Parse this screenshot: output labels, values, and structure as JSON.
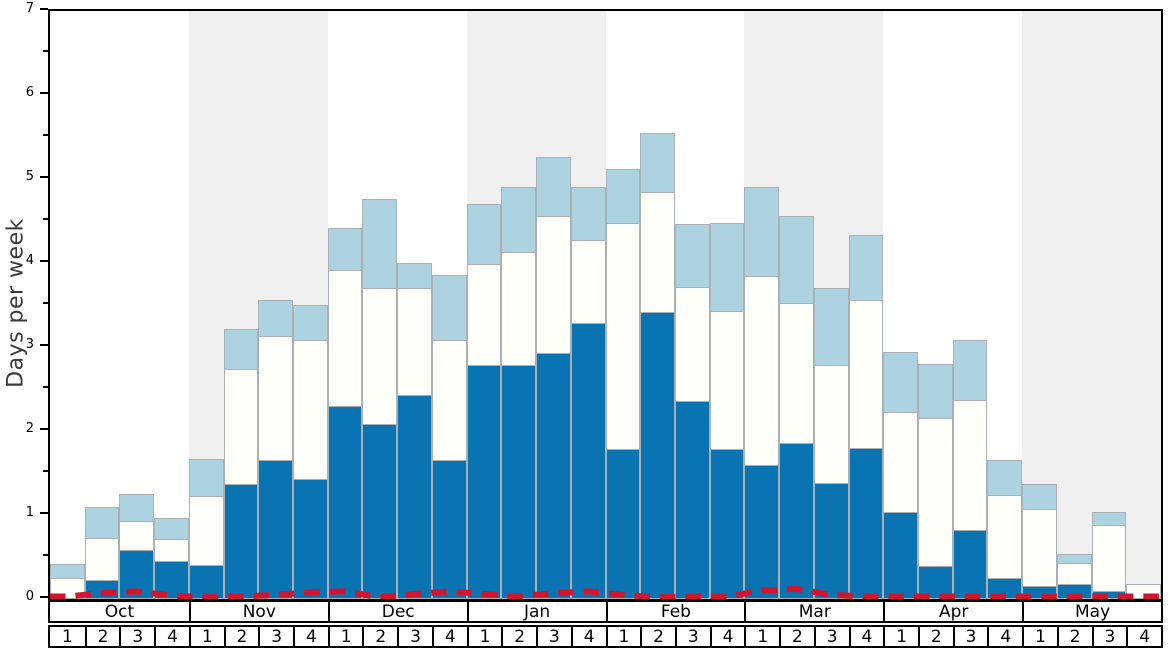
{
  "chart_data": {
    "type": "bar",
    "subtype": "stacked-bars-with-dashed-line-overlay",
    "title": "",
    "xlabel": "",
    "ylabel": "Days per week",
    "ylim": [
      0,
      7
    ],
    "yticks": [
      0,
      1,
      2,
      3,
      4,
      5,
      6,
      7
    ],
    "minor_tick_step": 0.5,
    "grid": false,
    "legend_position": "none",
    "months": [
      "Oct",
      "Nov",
      "Dec",
      "Jan",
      "Feb",
      "Mar",
      "Apr",
      "May"
    ],
    "weeks_per_month": [
      "1",
      "2",
      "3",
      "4"
    ],
    "shaded_months": [
      "Nov",
      "Jan",
      "Mar",
      "May"
    ],
    "categories": [
      "Oct-1",
      "Oct-2",
      "Oct-3",
      "Oct-4",
      "Nov-1",
      "Nov-2",
      "Nov-3",
      "Nov-4",
      "Dec-1",
      "Dec-2",
      "Dec-3",
      "Dec-4",
      "Jan-1",
      "Jan-2",
      "Jan-3",
      "Jan-4",
      "Feb-1",
      "Feb-2",
      "Feb-3",
      "Feb-4",
      "Mar-1",
      "Mar-2",
      "Mar-3",
      "Mar-4",
      "Apr-1",
      "Apr-2",
      "Apr-3",
      "Apr-4",
      "May-1",
      "May-2",
      "May-3",
      "May-4"
    ],
    "series": [
      {
        "name": "dark-blue-bottom-segment",
        "color": "#0a73b2",
        "cumulative_top": [
          0.0,
          0.23,
          0.58,
          0.45,
          0.4,
          1.37,
          1.66,
          1.43,
          2.3,
          2.08,
          2.43,
          1.65,
          2.78,
          2.79,
          2.93,
          3.28,
          1.79,
          3.42,
          2.36,
          1.79,
          1.59,
          1.86,
          1.38,
          1.8,
          1.03,
          0.39,
          0.82,
          0.25,
          0.15,
          0.18,
          0.1,
          0.0
        ]
      },
      {
        "name": "white-middle-segment",
        "color": "#fffffa",
        "cumulative_top": [
          0.25,
          0.73,
          0.93,
          0.72,
          1.23,
          2.74,
          3.13,
          3.08,
          3.92,
          3.7,
          3.7,
          3.08,
          3.99,
          4.13,
          4.56,
          4.27,
          4.48,
          4.85,
          3.72,
          3.43,
          3.85,
          3.52,
          2.79,
          3.56,
          2.23,
          2.16,
          2.37,
          1.24,
          1.07,
          0.43,
          0.88,
          0.18
        ]
      },
      {
        "name": "light-blue-top-segment",
        "color": "#add3e0",
        "cumulative_top": [
          0.42,
          1.1,
          1.25,
          0.97,
          1.67,
          3.22,
          3.56,
          3.5,
          4.42,
          4.76,
          4.0,
          3.86,
          4.7,
          4.91,
          5.26,
          4.91,
          5.12,
          5.55,
          4.47,
          4.48,
          4.9,
          4.56,
          3.7,
          4.33,
          2.94,
          2.8,
          3.08,
          1.65,
          1.37,
          0.53,
          1.03,
          0.18
        ]
      },
      {
        "name": "red-dashed-line",
        "color": "#d2152e",
        "values": [
          0.03,
          0.07,
          0.09,
          0.04,
          0.02,
          0.03,
          0.05,
          0.08,
          0.09,
          0.02,
          0.06,
          0.09,
          0.06,
          0.03,
          0.07,
          0.09,
          0.05,
          0.02,
          0.03,
          0.03,
          0.1,
          0.12,
          0.05,
          0.03,
          0.03,
          0.03,
          0.03,
          0.03,
          0.03,
          0.03,
          0.03,
          0.03
        ]
      }
    ],
    "colors": {
      "dark_blue": "#0a73b2",
      "white_bar": "#fffffa",
      "light_blue": "#add3e0",
      "red_line": "#d2152e",
      "shaded_band": "#f0f0f1",
      "bar_border": "#aab0b6",
      "axis": "#000000"
    }
  }
}
